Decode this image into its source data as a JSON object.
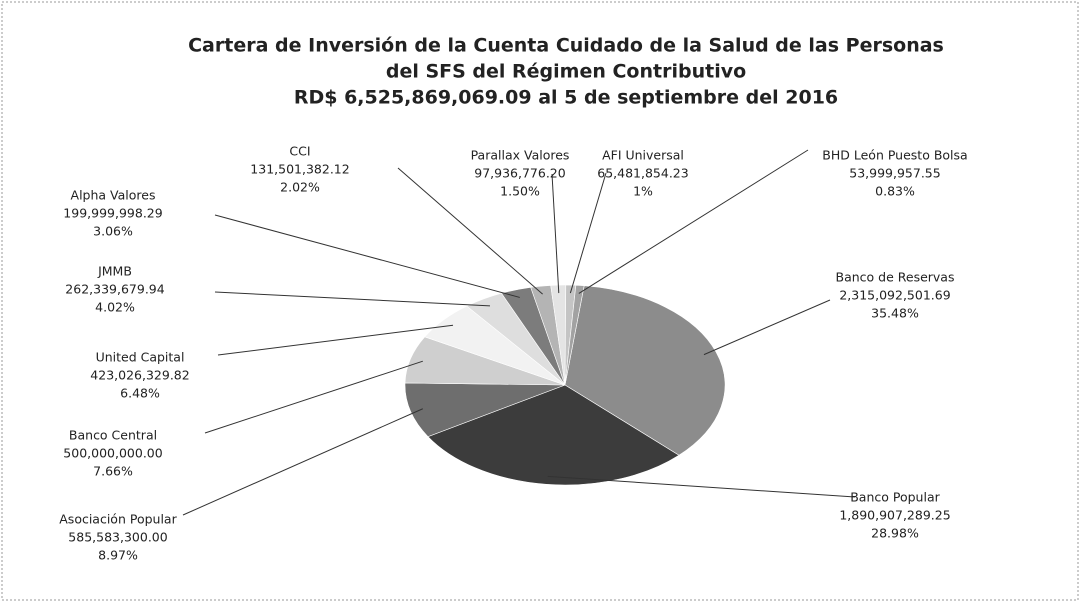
{
  "chart_data": {
    "type": "pie",
    "title_lines": [
      "Cartera de Inversión de la Cuenta Cuidado de la Salud de las Personas",
      "del SFS del Régimen Contributivo",
      "RD$ 6,525,869,069.09  al 5  de septiembre del 2016"
    ],
    "categories": [
      "Banco de Reservas",
      "Banco Popular",
      "Asociación Popular",
      "Banco Central",
      "United Capital",
      "JMMB",
      "Alpha Valores",
      "CCI",
      "Parallax Valores",
      "AFI Universal",
      "BHD León Puesto Bolsa"
    ],
    "values": [
      2315092501.69,
      1890907289.25,
      585583300.0,
      500000000.0,
      423026329.82,
      262339679.94,
      199999998.29,
      131501382.12,
      97936776.2,
      65481854.23,
      53999957.55
    ],
    "value_labels": [
      "2,315,092,501.69",
      "1,890,907,289.25",
      "585,583,300.00",
      "500,000,000.00",
      "423,026,329.82",
      "262,339,679.94",
      "199,999,998.29",
      "131,501,382.12",
      "97,936,776.20",
      "65,481,854.23",
      "53,999,957.55"
    ],
    "percents": [
      35.48,
      28.98,
      8.97,
      7.66,
      6.48,
      4.02,
      3.06,
      2.02,
      1.5,
      1,
      0.83
    ],
    "percent_labels": [
      "35.48%",
      "28.98%",
      "8.97%",
      "7.66%",
      "6.48%",
      "4.02%",
      "3.06%",
      "2.02%",
      "1.50%",
      "1%",
      "0.83%"
    ],
    "colors": [
      "#8c8c8c",
      "#3c3c3c",
      "#6e6e6e",
      "#cfcfcf",
      "#f2f2f2",
      "#dedede",
      "#7c7c7c",
      "#b4b4b4",
      "#e4e4e4",
      "#c4c4c4",
      "#a2a2a2"
    ]
  }
}
